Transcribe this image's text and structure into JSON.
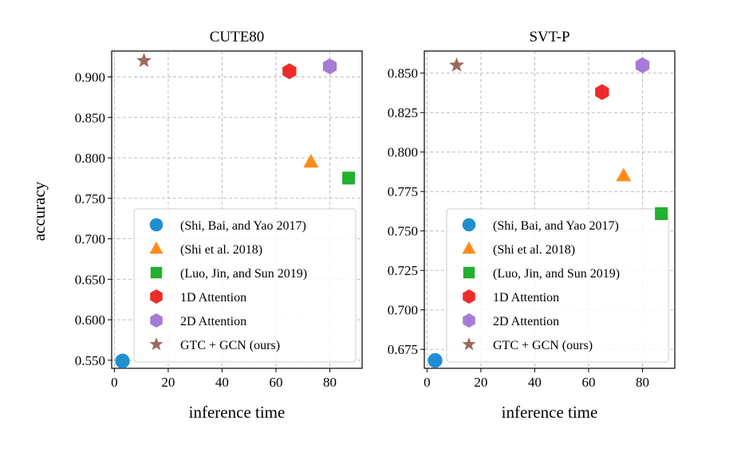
{
  "shared": {
    "ylabel": "accuracy",
    "xlabel": "inference time",
    "legend_location": "lower-right",
    "legend": [
      {
        "label": "(Shi, Bai, and Yao 2017)",
        "marker": "circle",
        "color": "#1f8fd1"
      },
      {
        "label": "(Shi et al. 2018)",
        "marker": "triangle",
        "color": "#ff8c1a"
      },
      {
        "label": "(Luo, Jin, and Sun 2019)",
        "marker": "square",
        "color": "#22b02e"
      },
      {
        "label": "1D Attention",
        "marker": "hexagon",
        "color": "#ee2b2b"
      },
      {
        "label": "2D Attention",
        "marker": "hexagon",
        "color": "#a57bd6"
      },
      {
        "label": "GTC + GCN (ours)",
        "marker": "star",
        "color": "#9e6a5b"
      }
    ]
  },
  "chart_data": [
    {
      "type": "scatter",
      "title": "CUTE80",
      "xlabel": "inference time",
      "ylabel": "accuracy",
      "xlim": [
        -1,
        92
      ],
      "ylim": [
        0.54,
        0.932
      ],
      "xticks": [
        "0",
        "20",
        "40",
        "60",
        "80"
      ],
      "xtick_values": [
        0,
        20,
        40,
        60,
        80
      ],
      "yticks": [
        "0.550",
        "0.600",
        "0.650",
        "0.700",
        "0.750",
        "0.800",
        "0.850",
        "0.900"
      ],
      "ytick_values": [
        0.55,
        0.6,
        0.65,
        0.7,
        0.75,
        0.8,
        0.85,
        0.9
      ],
      "grid": true,
      "series": [
        {
          "name": "(Shi, Bai, and Yao 2017)",
          "x": 3,
          "y": 0.549
        },
        {
          "name": "(Shi et al. 2018)",
          "x": 73,
          "y": 0.795
        },
        {
          "name": "(Luo, Jin, and Sun 2019)",
          "x": 87,
          "y": 0.775
        },
        {
          "name": "1D Attention",
          "x": 65,
          "y": 0.907
        },
        {
          "name": "2D Attention",
          "x": 80,
          "y": 0.913
        },
        {
          "name": "GTC + GCN (ours)",
          "x": 11,
          "y": 0.92
        }
      ]
    },
    {
      "type": "scatter",
      "title": "SVT-P",
      "xlabel": "inference time",
      "ylabel": "",
      "xlim": [
        -1,
        92
      ],
      "ylim": [
        0.663,
        0.864
      ],
      "xticks": [
        "0",
        "20",
        "40",
        "60",
        "80"
      ],
      "xtick_values": [
        0,
        20,
        40,
        60,
        80
      ],
      "yticks": [
        "0.675",
        "0.700",
        "0.725",
        "0.750",
        "0.775",
        "0.800",
        "0.825",
        "0.850"
      ],
      "ytick_values": [
        0.675,
        0.7,
        0.725,
        0.75,
        0.775,
        0.8,
        0.825,
        0.85
      ],
      "grid": true,
      "series": [
        {
          "name": "(Shi, Bai, and Yao 2017)",
          "x": 3,
          "y": 0.668
        },
        {
          "name": "(Shi et al. 2018)",
          "x": 73,
          "y": 0.785
        },
        {
          "name": "(Luo, Jin, and Sun 2019)",
          "x": 87,
          "y": 0.761
        },
        {
          "name": "1D Attention",
          "x": 65,
          "y": 0.838
        },
        {
          "name": "2D Attention",
          "x": 80,
          "y": 0.855
        },
        {
          "name": "GTC + GCN (ours)",
          "x": 11,
          "y": 0.855
        }
      ]
    }
  ]
}
